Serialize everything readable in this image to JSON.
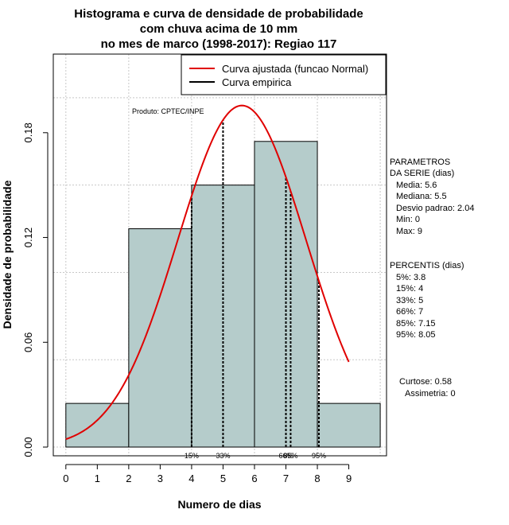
{
  "chart_data": {
    "type": "bar",
    "title_lines": [
      "Histograma e curva de densidade de probabilidade",
      "com chuva acima de 10 mm",
      "no mes de marco (1998-2017): Regiao 117"
    ],
    "xlabel": "Numero de dias",
    "ylabel": "Densidade de probabilidade",
    "xlim": [
      -0.4,
      10.2
    ],
    "ylim": [
      -0.005,
      0.225
    ],
    "xticks": [
      0,
      1,
      2,
      3,
      4,
      5,
      6,
      7,
      8,
      9
    ],
    "yticks": [
      0.0,
      0.06,
      0.12,
      0.18
    ],
    "ytick_labels": [
      "0.00",
      "0.06",
      "0.12",
      "0.18"
    ],
    "grid_x": [
      0,
      2,
      4,
      6,
      8,
      10
    ],
    "grid_y": [
      0.0,
      0.05,
      0.1,
      0.15,
      0.2
    ],
    "bins": [
      {
        "from": 0,
        "to": 2,
        "density": 0.025
      },
      {
        "from": 2,
        "to": 4,
        "density": 0.125
      },
      {
        "from": 4,
        "to": 6,
        "density": 0.15
      },
      {
        "from": 6,
        "to": 8,
        "density": 0.175
      },
      {
        "from": 8,
        "to": 10,
        "density": 0.025
      }
    ],
    "bar_color": "#b5cccb",
    "normal_curve": {
      "mean": 5.6,
      "sd": 2.04,
      "x_from": 0,
      "x_to": 9,
      "color": "#e00000"
    },
    "percentile_lines": [
      {
        "label": "15%",
        "x": 4
      },
      {
        "label": "33%",
        "x": 5
      },
      {
        "label": "66%",
        "x": 7
      },
      {
        "label": "85%",
        "x": 7.15
      },
      {
        "label": "95%",
        "x": 8.05
      }
    ],
    "legend": [
      {
        "label": "Curva ajustada (funcao Normal)",
        "color": "#e00000"
      },
      {
        "label": "Curva empirica",
        "color": "#000000"
      }
    ],
    "product_note": "Produto: CPTEC/INPE",
    "parameters": {
      "header": [
        "PARAMETROS",
        "DA SERIE (dias)"
      ],
      "lines": [
        "Media: 5.6",
        "Mediana: 5.5",
        "Desvio padrao: 2.04",
        "Min: 0",
        "Max: 9"
      ]
    },
    "percentiles": {
      "header": "PERCENTIS (dias)",
      "lines": [
        "5%: 3.8",
        "15%: 4",
        "33%: 5",
        "66%: 7",
        "85%: 7.15",
        "95%: 8.05"
      ]
    },
    "shape": {
      "lines": [
        "Curtose: 0.58",
        "Assimetria: 0"
      ]
    }
  }
}
